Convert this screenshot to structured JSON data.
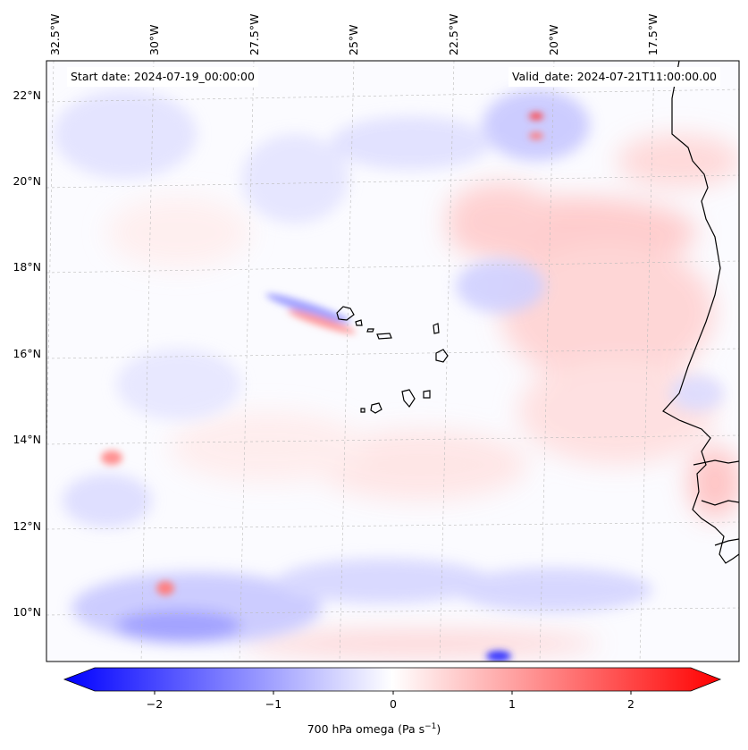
{
  "map": {
    "lon_ticks": [
      "32.5°W",
      "30°W",
      "27.5°W",
      "25°W",
      "22.5°W",
      "20°W",
      "17.5°W"
    ],
    "lat_ticks": [
      "22°N",
      "20°N",
      "18°N",
      "16°N",
      "14°N",
      "12°N",
      "10°N"
    ],
    "start_date": "Start date: 2024-07-19_00:00:00",
    "valid_date": "Valid_date: 2024-07-21T11:00:00.00"
  },
  "colorbar": {
    "ticks": [
      "−2",
      "−1",
      "0",
      "1",
      "2"
    ],
    "label_main": "700 hPa omega (Pa s",
    "label_exp": "−1",
    "label_close": ")",
    "min": -2.6,
    "max": 2.6,
    "colors": {
      "negative": "#0000ff",
      "zero": "#ffffff",
      "positive": "#ff0000"
    }
  }
}
